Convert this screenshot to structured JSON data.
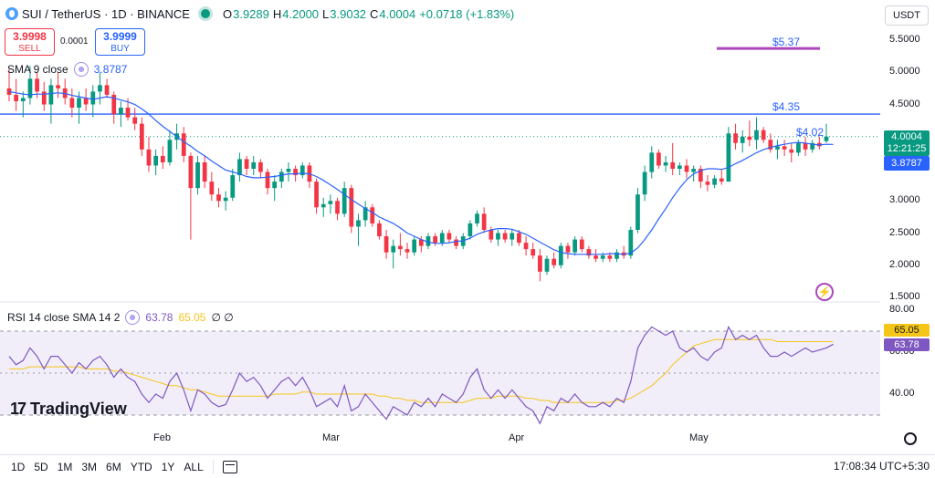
{
  "header": {
    "symbol": "SUI / TetherUS · 1D · BINANCE",
    "open_key": "O",
    "open": "3.9289",
    "high_key": "H",
    "high": "4.2000",
    "low_key": "L",
    "low": "3.9032",
    "close_key": "C",
    "close": "4.0004",
    "change": "+0.0718 (+1.83%)"
  },
  "trade": {
    "sell_price": "3.9998",
    "sell_label": "SELL",
    "spread": "0.0001",
    "buy_price": "3.9999",
    "buy_label": "BUY"
  },
  "indicators": {
    "sma_label": "SMA 9 close",
    "sma_value": "3.8787",
    "rsi_label": "RSI 14 close SMA 14 2",
    "rsi_value": "63.78",
    "rsi_sma_value": "65.05",
    "rsi_extra": "∅ ∅"
  },
  "currency": "USDT",
  "price_axis": [
    "5.5000",
    "5.0000",
    "4.5000",
    "4.0000",
    "3.5000",
    "3.0000",
    "2.5000",
    "2.0000",
    "1.5000"
  ],
  "rsi_axis": [
    "80.00",
    "60.00",
    "40.00"
  ],
  "tags": {
    "price": "4.0004",
    "countdown": "12:21:25",
    "sma": "3.8787",
    "rsi_sma": "65.05",
    "rsi": "63.78"
  },
  "lines": {
    "purple_label": "$5.37",
    "blue_label": "$4.35",
    "current_label": "$4.02"
  },
  "months": [
    "Feb",
    "Mar",
    "Apr",
    "May"
  ],
  "logo": "TradingView",
  "timeframes": [
    "1D",
    "5D",
    "1M",
    "3M",
    "6M",
    "YTD",
    "1Y",
    "ALL"
  ],
  "clock": "17:08:34 UTC+5:30",
  "colors": {
    "up": "#089981",
    "down": "#f23645",
    "sma": "#2962ff",
    "rsi": "#7e57c2",
    "rsi_sma": "#f5c518",
    "line_purple": "#ab47bc"
  },
  "chart_data": {
    "type": "candlestick",
    "symbol": "SUI / TetherUS",
    "interval": "1D",
    "ylim": [
      1.5,
      5.6
    ],
    "horizontal_lines": [
      5.37,
      4.35
    ],
    "candles": [
      [
        4.75,
        5.05,
        4.55,
        4.65
      ],
      [
        4.65,
        4.9,
        4.4,
        4.55
      ],
      [
        4.55,
        4.7,
        4.3,
        4.6
      ],
      [
        4.6,
        5.1,
        4.5,
        4.9
      ],
      [
        4.9,
        5.0,
        4.6,
        4.7
      ],
      [
        4.7,
        4.85,
        4.4,
        4.5
      ],
      [
        4.5,
        4.9,
        4.2,
        4.8
      ],
      [
        4.8,
        5.0,
        4.6,
        4.75
      ],
      [
        4.75,
        4.9,
        4.5,
        4.6
      ],
      [
        4.6,
        4.75,
        4.3,
        4.45
      ],
      [
        4.45,
        4.7,
        4.2,
        4.6
      ],
      [
        4.6,
        4.75,
        4.4,
        4.5
      ],
      [
        4.5,
        4.8,
        4.3,
        4.7
      ],
      [
        4.7,
        5.0,
        4.5,
        4.8
      ],
      [
        4.8,
        4.9,
        4.6,
        4.65
      ],
      [
        4.65,
        4.7,
        4.2,
        4.35
      ],
      [
        4.35,
        4.55,
        4.15,
        4.45
      ],
      [
        4.45,
        4.6,
        4.25,
        4.3
      ],
      [
        4.3,
        4.45,
        4.1,
        4.2
      ],
      [
        4.2,
        4.3,
        3.7,
        3.8
      ],
      [
        3.8,
        4.0,
        3.45,
        3.55
      ],
      [
        3.55,
        3.8,
        3.4,
        3.7
      ],
      [
        3.7,
        3.85,
        3.5,
        3.6
      ],
      [
        3.6,
        4.1,
        3.55,
        3.95
      ],
      [
        3.95,
        4.2,
        3.8,
        4.05
      ],
      [
        4.05,
        4.15,
        3.6,
        3.7
      ],
      [
        3.7,
        3.75,
        2.4,
        3.2
      ],
      [
        3.2,
        3.7,
        3.1,
        3.6
      ],
      [
        3.6,
        3.7,
        3.2,
        3.3
      ],
      [
        3.3,
        3.45,
        3.0,
        3.1
      ],
      [
        3.1,
        3.2,
        2.9,
        3.0
      ],
      [
        3.0,
        3.15,
        2.85,
        3.05
      ],
      [
        3.05,
        3.5,
        3.0,
        3.4
      ],
      [
        3.4,
        3.75,
        3.3,
        3.65
      ],
      [
        3.65,
        3.7,
        3.4,
        3.5
      ],
      [
        3.5,
        3.7,
        3.4,
        3.6
      ],
      [
        3.6,
        3.65,
        3.35,
        3.45
      ],
      [
        3.45,
        3.5,
        3.1,
        3.2
      ],
      [
        3.2,
        3.4,
        3.0,
        3.3
      ],
      [
        3.3,
        3.5,
        3.2,
        3.45
      ],
      [
        3.45,
        3.6,
        3.3,
        3.5
      ],
      [
        3.5,
        3.55,
        3.3,
        3.4
      ],
      [
        3.4,
        3.6,
        3.35,
        3.55
      ],
      [
        3.55,
        3.6,
        3.2,
        3.3
      ],
      [
        3.3,
        3.35,
        2.8,
        2.9
      ],
      [
        2.9,
        3.05,
        2.75,
        2.95
      ],
      [
        2.95,
        3.1,
        2.8,
        3.0
      ],
      [
        3.0,
        3.05,
        2.7,
        2.8
      ],
      [
        2.8,
        3.3,
        2.75,
        3.2
      ],
      [
        3.2,
        3.25,
        2.5,
        2.6
      ],
      [
        2.6,
        2.8,
        2.3,
        2.7
      ],
      [
        2.7,
        3.0,
        2.6,
        2.9
      ],
      [
        2.9,
        2.95,
        2.6,
        2.65
      ],
      [
        2.65,
        2.7,
        2.4,
        2.45
      ],
      [
        2.45,
        2.55,
        2.1,
        2.2
      ],
      [
        2.2,
        2.4,
        1.95,
        2.3
      ],
      [
        2.3,
        2.5,
        2.15,
        2.25
      ],
      [
        2.25,
        2.35,
        2.1,
        2.2
      ],
      [
        2.2,
        2.45,
        2.15,
        2.4
      ],
      [
        2.4,
        2.45,
        2.2,
        2.3
      ],
      [
        2.3,
        2.5,
        2.25,
        2.45
      ],
      [
        2.45,
        2.5,
        2.3,
        2.35
      ],
      [
        2.35,
        2.55,
        2.3,
        2.5
      ],
      [
        2.5,
        2.55,
        2.35,
        2.4
      ],
      [
        2.4,
        2.45,
        2.25,
        2.3
      ],
      [
        2.3,
        2.5,
        2.25,
        2.45
      ],
      [
        2.45,
        2.7,
        2.4,
        2.65
      ],
      [
        2.65,
        2.85,
        2.6,
        2.8
      ],
      [
        2.8,
        2.9,
        2.5,
        2.55
      ],
      [
        2.55,
        2.6,
        2.35,
        2.4
      ],
      [
        2.4,
        2.55,
        2.3,
        2.5
      ],
      [
        2.5,
        2.55,
        2.35,
        2.4
      ],
      [
        2.4,
        2.55,
        2.3,
        2.5
      ],
      [
        2.5,
        2.55,
        2.3,
        2.35
      ],
      [
        2.35,
        2.45,
        2.15,
        2.25
      ],
      [
        2.25,
        2.35,
        2.1,
        2.15
      ],
      [
        2.15,
        2.25,
        1.75,
        1.9
      ],
      [
        1.9,
        2.15,
        1.85,
        2.1
      ],
      [
        2.1,
        2.2,
        1.95,
        2.0
      ],
      [
        2.0,
        2.35,
        1.95,
        2.3
      ],
      [
        2.3,
        2.35,
        2.1,
        2.2
      ],
      [
        2.2,
        2.45,
        2.15,
        2.4
      ],
      [
        2.4,
        2.45,
        2.2,
        2.25
      ],
      [
        2.25,
        2.3,
        2.1,
        2.15
      ],
      [
        2.15,
        2.25,
        2.05,
        2.1
      ],
      [
        2.1,
        2.2,
        2.05,
        2.15
      ],
      [
        2.15,
        2.2,
        2.05,
        2.1
      ],
      [
        2.1,
        2.25,
        2.05,
        2.2
      ],
      [
        2.2,
        2.3,
        2.1,
        2.15
      ],
      [
        2.15,
        2.6,
        2.1,
        2.55
      ],
      [
        2.55,
        3.2,
        2.5,
        3.1
      ],
      [
        3.1,
        3.55,
        3.0,
        3.45
      ],
      [
        3.45,
        3.85,
        3.35,
        3.75
      ],
      [
        3.75,
        3.8,
        3.5,
        3.55
      ],
      [
        3.55,
        3.7,
        3.45,
        3.6
      ],
      [
        3.6,
        3.9,
        3.4,
        3.5
      ],
      [
        3.5,
        3.6,
        3.4,
        3.55
      ],
      [
        3.55,
        3.65,
        3.35,
        3.45
      ],
      [
        3.45,
        3.55,
        3.3,
        3.5
      ],
      [
        3.5,
        3.55,
        3.2,
        3.3
      ],
      [
        3.3,
        3.4,
        3.15,
        3.25
      ],
      [
        3.25,
        3.4,
        3.2,
        3.35
      ],
      [
        3.35,
        3.5,
        3.25,
        3.3
      ],
      [
        3.3,
        4.15,
        3.3,
        4.05
      ],
      [
        4.05,
        4.2,
        3.8,
        3.9
      ],
      [
        3.9,
        4.1,
        3.75,
        4.0
      ],
      [
        4.0,
        4.25,
        3.85,
        3.95
      ],
      [
        3.95,
        4.3,
        3.8,
        4.1
      ],
      [
        4.1,
        4.15,
        3.9,
        3.95
      ],
      [
        3.95,
        4.05,
        3.75,
        3.8
      ],
      [
        3.8,
        3.95,
        3.65,
        3.85
      ],
      [
        3.85,
        3.95,
        3.7,
        3.8
      ],
      [
        3.8,
        3.9,
        3.6,
        3.75
      ],
      [
        3.75,
        3.95,
        3.7,
        3.9
      ],
      [
        3.9,
        4.0,
        3.7,
        3.8
      ],
      [
        3.8,
        3.95,
        3.75,
        3.9
      ],
      [
        3.9,
        4.0,
        3.8,
        3.85
      ],
      [
        3.93,
        4.2,
        3.9,
        4.0
      ]
    ],
    "sma9": [
      4.7,
      4.68,
      4.66,
      4.65,
      4.66,
      4.66,
      4.67,
      4.68,
      4.67,
      4.64,
      4.62,
      4.6,
      4.58,
      4.6,
      4.62,
      4.6,
      4.57,
      4.54,
      4.5,
      4.43,
      4.35,
      4.25,
      4.16,
      4.08,
      4.0,
      3.92,
      3.85,
      3.77,
      3.7,
      3.62,
      3.55,
      3.48,
      3.45,
      3.42,
      3.38,
      3.36,
      3.36,
      3.37,
      3.38,
      3.4,
      3.42,
      3.42,
      3.43,
      3.42,
      3.38,
      3.32,
      3.25,
      3.18,
      3.1,
      3.02,
      2.95,
      2.88,
      2.82,
      2.75,
      2.7,
      2.65,
      2.58,
      2.5,
      2.45,
      2.4,
      2.36,
      2.34,
      2.34,
      2.35,
      2.37,
      2.38,
      2.42,
      2.48,
      2.52,
      2.55,
      2.57,
      2.57,
      2.56,
      2.52,
      2.48,
      2.42,
      2.36,
      2.3,
      2.24,
      2.2,
      2.18,
      2.17,
      2.17,
      2.17,
      2.17,
      2.17,
      2.18,
      2.18,
      2.17,
      2.19,
      2.27,
      2.4,
      2.55,
      2.72,
      2.88,
      3.05,
      3.2,
      3.33,
      3.42,
      3.47,
      3.5,
      3.5,
      3.49,
      3.52,
      3.58,
      3.63,
      3.69,
      3.75,
      3.8,
      3.83,
      3.86,
      3.88,
      3.9,
      3.91,
      3.9,
      3.88,
      3.87,
      3.88,
      3.8787
    ],
    "rsi": [
      58,
      54,
      56,
      62,
      58,
      52,
      58,
      58,
      54,
      50,
      55,
      52,
      56,
      58,
      54,
      48,
      52,
      48,
      46,
      40,
      36,
      40,
      38,
      46,
      50,
      42,
      32,
      42,
      40,
      36,
      34,
      35,
      42,
      50,
      46,
      48,
      44,
      38,
      42,
      46,
      48,
      44,
      48,
      42,
      34,
      36,
      38,
      34,
      44,
      32,
      34,
      40,
      36,
      32,
      28,
      34,
      32,
      30,
      36,
      34,
      38,
      34,
      40,
      38,
      36,
      40,
      48,
      52,
      42,
      38,
      42,
      38,
      42,
      38,
      34,
      32,
      26,
      34,
      32,
      38,
      36,
      40,
      36,
      34,
      34,
      36,
      34,
      38,
      36,
      46,
      62,
      68,
      72,
      70,
      68,
      70,
      62,
      60,
      62,
      58,
      56,
      60,
      62,
      72,
      66,
      68,
      66,
      68,
      62,
      58,
      58,
      60,
      58,
      60,
      62,
      60,
      61,
      62,
      63.78
    ],
    "rsi_sma": [
      52,
      52,
      52,
      53,
      53,
      53,
      53,
      53,
      53,
      53,
      53,
      52,
      52,
      52,
      52,
      51,
      51,
      50,
      49,
      48,
      47,
      46,
      45,
      44,
      44,
      43,
      42,
      42,
      41,
      40,
      39,
      39,
      39,
      39,
      39,
      39,
      39,
      39,
      40,
      40,
      40,
      40,
      41,
      41,
      40,
      40,
      40,
      40,
      40,
      40,
      40,
      40,
      40,
      39,
      39,
      38,
      38,
      37,
      37,
      36,
      36,
      36,
      36,
      36,
      36,
      36,
      37,
      38,
      38,
      38,
      39,
      39,
      39,
      39,
      38,
      38,
      37,
      37,
      36,
      36,
      36,
      36,
      36,
      36,
      36,
      36,
      36,
      37,
      37,
      38,
      40,
      42,
      44,
      47,
      50,
      54,
      57,
      60,
      63,
      64,
      65,
      66,
      66,
      66,
      66,
      66,
      66,
      66,
      66,
      66,
      65,
      65,
      65,
      65,
      65,
      65,
      65,
      65,
      65.05
    ],
    "rsi_ylim": [
      20,
      90
    ],
    "rsi_band": [
      30,
      70
    ]
  }
}
